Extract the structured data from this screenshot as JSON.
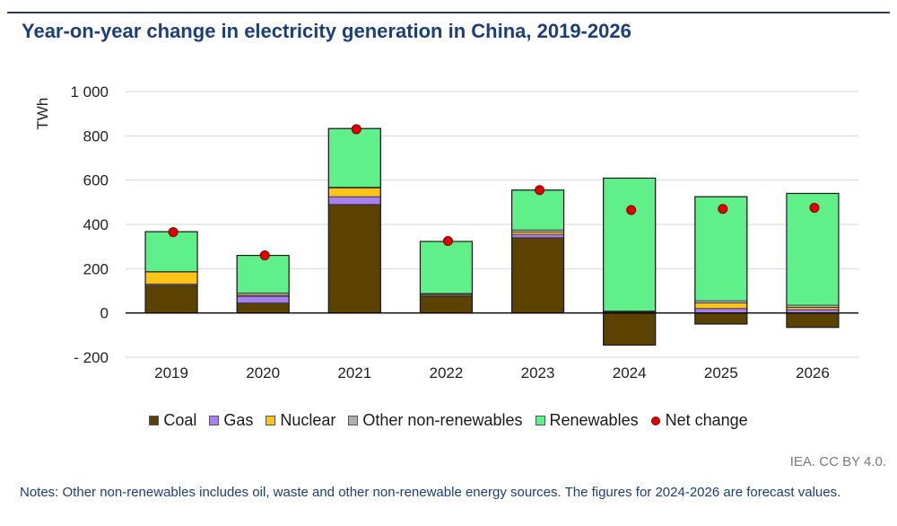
{
  "title": "Year-on-year change in electricity generation in China, 2019-2026",
  "credit": "IEA. CC BY 4.0.",
  "notes": "Notes: Other non-renewables includes oil, waste and other non-renewable energy sources. The figures for 2024-2026 are forecast values.",
  "colors": {
    "Coal": "#5c4200",
    "Gas": "#a77ff0",
    "Nuclear": "#ffc31a",
    "Other non-renewables": "#b0b0b0",
    "Renewables": "#5ff08a",
    "Net change": "#e00000"
  },
  "legend": [
    "Coal",
    "Gas",
    "Nuclear",
    "Other non-renewables",
    "Renewables",
    "Net change"
  ],
  "chart_data": {
    "type": "bar",
    "stacked": true,
    "title": "Year-on-year change in electricity generation in China, 2019-2026",
    "xlabel": "",
    "ylabel": "TWh",
    "ylim": [
      -200,
      1000
    ],
    "yticks": [
      -200,
      0,
      200,
      400,
      600,
      800,
      1000
    ],
    "ytick_labels": [
      "- 200",
      "0",
      "200",
      "400",
      "600",
      "800",
      "1 000"
    ],
    "grid": true,
    "legend_position": "bottom",
    "categories": [
      "2019",
      "2020",
      "2021",
      "2022",
      "2023",
      "2024",
      "2025",
      "2026"
    ],
    "series": [
      {
        "name": "Coal",
        "values": [
          125,
          45,
          490,
          75,
          340,
          -145,
          -50,
          -65
        ]
      },
      {
        "name": "Gas",
        "values": [
          5,
          30,
          35,
          5,
          15,
          5,
          20,
          15
        ]
      },
      {
        "name": "Nuclear",
        "values": [
          55,
          5,
          40,
          5,
          10,
          2,
          25,
          10
        ]
      },
      {
        "name": "Other non-renewables",
        "values": [
          2,
          10,
          3,
          3,
          10,
          2,
          10,
          10
        ]
      },
      {
        "name": "Renewables",
        "values": [
          180,
          170,
          265,
          235,
          180,
          600,
          470,
          505
        ]
      },
      {
        "name": "Net change",
        "type": "marker",
        "values": [
          365,
          260,
          830,
          325,
          555,
          465,
          470,
          475
        ]
      }
    ]
  }
}
